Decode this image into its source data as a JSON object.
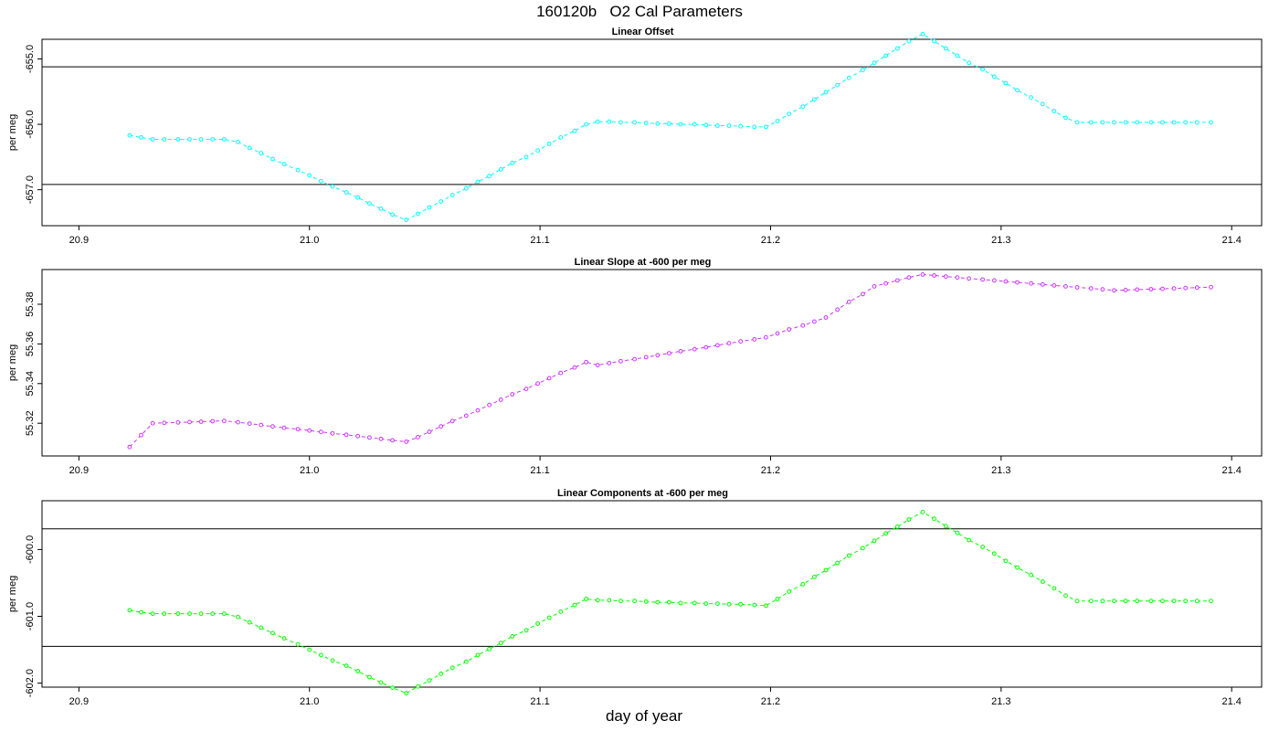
{
  "title": "160120b   O2 Cal Parameters",
  "xlabel": "day of year",
  "chart_data": [
    {
      "type": "line",
      "title": "Linear Offset",
      "xlabel": "day of year",
      "ylabel": "per meg",
      "color": "#00ffff",
      "xlim": [
        20.884,
        21.413
      ],
      "ylim": [
        -657.55,
        -654.7
      ],
      "x_ticks": [
        20.9,
        21.0,
        21.1,
        21.2,
        21.3,
        21.4
      ],
      "x_tick_labels": [
        "20.9",
        "21.0",
        "21.1",
        "21.2",
        "21.3",
        "21.4"
      ],
      "y_ticks": [
        -655.0,
        -656.0,
        -657.0
      ],
      "y_tick_labels": [
        "-655.0",
        "-656.0",
        "-657.0"
      ],
      "hlines": [
        -655.12,
        -656.92
      ],
      "series": [
        {
          "name": "Linear Offset",
          "x": [
            20.922,
            20.927,
            20.932,
            20.937,
            20.943,
            20.948,
            20.953,
            20.958,
            20.963,
            20.969,
            20.974,
            20.979,
            20.984,
            20.989,
            20.995,
            21.0,
            21.005,
            21.01,
            21.016,
            21.021,
            21.026,
            21.031,
            21.036,
            21.042,
            21.047,
            21.052,
            21.057,
            21.062,
            21.068,
            21.073,
            21.078,
            21.083,
            21.088,
            21.094,
            21.099,
            21.104,
            21.109,
            21.115,
            21.12,
            21.125,
            21.13,
            21.135,
            21.141,
            21.146,
            21.151,
            21.156,
            21.161,
            21.167,
            21.172,
            21.177,
            21.182,
            21.187,
            21.193,
            21.198,
            21.203,
            21.208,
            21.214,
            21.219,
            21.224,
            21.229,
            21.234,
            21.24,
            21.245,
            21.25,
            21.255,
            21.26,
            21.266,
            21.271,
            21.276,
            21.281,
            21.286,
            21.292,
            21.297,
            21.302,
            21.307,
            21.313,
            21.318,
            21.323,
            21.328,
            21.333,
            21.339,
            21.344,
            21.349,
            21.354,
            21.359,
            21.365,
            21.37,
            21.375,
            21.38,
            21.385,
            21.391
          ],
          "y": [
            -656.17,
            -656.2,
            -656.23,
            -656.23,
            -656.23,
            -656.23,
            -656.23,
            -656.23,
            -656.23,
            -656.27,
            -656.36,
            -656.44,
            -656.53,
            -656.61,
            -656.7,
            -656.78,
            -656.87,
            -656.95,
            -657.04,
            -657.12,
            -657.21,
            -657.29,
            -657.38,
            -657.46,
            -657.37,
            -657.27,
            -657.18,
            -657.08,
            -656.98,
            -656.88,
            -656.79,
            -656.69,
            -656.59,
            -656.5,
            -656.4,
            -656.3,
            -656.2,
            -656.1,
            -656.0,
            -655.96,
            -655.96,
            -655.97,
            -655.97,
            -655.98,
            -655.99,
            -655.99,
            -656.0,
            -656.0,
            -656.01,
            -656.02,
            -656.02,
            -656.03,
            -656.04,
            -656.04,
            -655.95,
            -655.84,
            -655.73,
            -655.62,
            -655.51,
            -655.4,
            -655.29,
            -655.17,
            -655.06,
            -654.95,
            -654.84,
            -654.73,
            -654.62,
            -654.73,
            -654.84,
            -654.95,
            -655.06,
            -655.16,
            -655.27,
            -655.37,
            -655.48,
            -655.59,
            -655.69,
            -655.8,
            -655.9,
            -655.97,
            -655.97,
            -655.97,
            -655.97,
            -655.97,
            -655.97,
            -655.97,
            -655.97,
            -655.97,
            -655.97,
            -655.97,
            -655.97
          ]
        }
      ]
    },
    {
      "type": "line",
      "title": "Linear Slope at -600 per meg",
      "xlabel": "day of year",
      "ylabel": "per meg",
      "color": "#cc33ff",
      "xlim": [
        20.884,
        21.413
      ],
      "ylim": [
        55.3035,
        55.3975
      ],
      "x_ticks": [
        20.9,
        21.0,
        21.1,
        21.2,
        21.3,
        21.4
      ],
      "x_tick_labels": [
        "20.9",
        "21.0",
        "21.1",
        "21.2",
        "21.3",
        "21.4"
      ],
      "y_ticks": [
        55.32,
        55.34,
        55.36,
        55.38
      ],
      "y_tick_labels": [
        "55.32",
        "55.34",
        "55.36",
        "55.38"
      ],
      "hlines": [],
      "series": [
        {
          "name": "Linear Slope at -600 per meg",
          "x": [
            20.922,
            20.927,
            20.932,
            20.937,
            20.943,
            20.948,
            20.953,
            20.958,
            20.963,
            20.969,
            20.974,
            20.979,
            20.984,
            20.989,
            20.995,
            21.0,
            21.005,
            21.01,
            21.016,
            21.021,
            21.026,
            21.031,
            21.036,
            21.042,
            21.047,
            21.052,
            21.057,
            21.062,
            21.068,
            21.073,
            21.078,
            21.083,
            21.088,
            21.094,
            21.099,
            21.104,
            21.109,
            21.115,
            21.12,
            21.125,
            21.13,
            21.135,
            21.141,
            21.146,
            21.151,
            21.156,
            21.161,
            21.167,
            21.172,
            21.177,
            21.182,
            21.187,
            21.193,
            21.198,
            21.203,
            21.208,
            21.214,
            21.219,
            21.224,
            21.229,
            21.234,
            21.24,
            21.245,
            21.25,
            21.255,
            21.26,
            21.266,
            21.271,
            21.276,
            21.281,
            21.286,
            21.292,
            21.297,
            21.302,
            21.307,
            21.313,
            21.318,
            21.323,
            21.328,
            21.333,
            21.339,
            21.344,
            21.349,
            21.354,
            21.359,
            21.365,
            21.37,
            21.375,
            21.38,
            21.385,
            21.391
          ],
          "y": [
            55.308,
            55.314,
            55.32,
            55.3202,
            55.3204,
            55.3206,
            55.3208,
            55.321,
            55.3212,
            55.3205,
            55.3198,
            55.3191,
            55.3184,
            55.3177,
            55.317,
            55.3163,
            55.3156,
            55.3149,
            55.3142,
            55.3135,
            55.3128,
            55.3121,
            55.3114,
            55.3107,
            55.313,
            55.3157,
            55.3184,
            55.3211,
            55.3238,
            55.3265,
            55.3292,
            55.3319,
            55.3346,
            55.3373,
            55.34,
            55.3427,
            55.3454,
            55.3481,
            55.3508,
            55.3493,
            55.3503,
            55.3513,
            55.3523,
            55.3533,
            55.3543,
            55.3553,
            55.3563,
            55.3573,
            55.3583,
            55.3593,
            55.3603,
            55.3613,
            55.3623,
            55.3633,
            55.3653,
            55.3673,
            55.3693,
            55.3713,
            55.3733,
            55.3773,
            55.3812,
            55.3851,
            55.389,
            55.3905,
            55.392,
            55.3935,
            55.395,
            55.3945,
            55.394,
            55.3935,
            55.393,
            55.3925,
            55.392,
            55.3915,
            55.391,
            55.3905,
            55.39,
            55.3895,
            55.389,
            55.3885,
            55.388,
            55.3875,
            55.387,
            55.3872,
            55.3874,
            55.3876,
            55.3878,
            55.388,
            55.3882,
            55.3884,
            55.3886
          ]
        }
      ]
    },
    {
      "type": "line",
      "title": "Linear Components at -600 per meg",
      "xlabel": "day of year",
      "ylabel": "per meg",
      "color": "#00ff00",
      "xlim": [
        20.884,
        21.413
      ],
      "ylim": [
        -602.06,
        -599.27
      ],
      "x_ticks": [
        20.9,
        21.0,
        21.1,
        21.2,
        21.3,
        21.4
      ],
      "x_tick_labels": [
        "20.9",
        "21.0",
        "21.1",
        "21.2",
        "21.3",
        "21.4"
      ],
      "y_ticks": [
        -600.0,
        -601.0,
        -602.0
      ],
      "y_tick_labels": [
        "-600.0",
        "-601.0",
        "-602.0"
      ],
      "hlines": [
        -599.69,
        -601.45
      ],
      "series": [
        {
          "name": "Linear Components at -600 per meg",
          "x": [
            20.922,
            20.927,
            20.932,
            20.937,
            20.943,
            20.948,
            20.953,
            20.958,
            20.963,
            20.969,
            20.974,
            20.979,
            20.984,
            20.989,
            20.995,
            21.0,
            21.005,
            21.01,
            21.016,
            21.021,
            21.026,
            21.031,
            21.036,
            21.042,
            21.047,
            21.052,
            21.057,
            21.062,
            21.068,
            21.073,
            21.078,
            21.083,
            21.088,
            21.094,
            21.099,
            21.104,
            21.109,
            21.115,
            21.12,
            21.125,
            21.13,
            21.135,
            21.141,
            21.146,
            21.151,
            21.156,
            21.161,
            21.167,
            21.172,
            21.177,
            21.182,
            21.187,
            21.193,
            21.198,
            21.203,
            21.208,
            21.214,
            21.219,
            21.224,
            21.229,
            21.234,
            21.24,
            21.245,
            21.25,
            21.255,
            21.26,
            21.266,
            21.271,
            21.276,
            21.281,
            21.286,
            21.292,
            21.297,
            21.302,
            21.307,
            21.313,
            21.318,
            21.323,
            21.328,
            21.333,
            21.339,
            21.344,
            21.349,
            21.354,
            21.359,
            21.365,
            21.37,
            21.375,
            21.38,
            21.385,
            21.391
          ],
          "y": [
            -600.91,
            -600.94,
            -600.96,
            -600.96,
            -600.96,
            -600.96,
            -600.96,
            -600.96,
            -600.96,
            -601.01,
            -601.09,
            -601.17,
            -601.25,
            -601.33,
            -601.42,
            -601.5,
            -601.58,
            -601.66,
            -601.74,
            -601.82,
            -601.91,
            -601.99,
            -602.07,
            -602.15,
            -602.05,
            -601.96,
            -601.86,
            -601.77,
            -601.68,
            -601.58,
            -601.49,
            -601.4,
            -601.3,
            -601.21,
            -601.11,
            -601.02,
            -600.93,
            -600.83,
            -600.74,
            -600.76,
            -600.76,
            -600.77,
            -600.77,
            -600.78,
            -600.79,
            -600.79,
            -600.8,
            -600.8,
            -600.81,
            -600.81,
            -600.82,
            -600.82,
            -600.83,
            -600.84,
            -600.74,
            -600.63,
            -600.52,
            -600.41,
            -600.31,
            -600.2,
            -600.09,
            -599.98,
            -599.87,
            -599.76,
            -599.66,
            -599.55,
            -599.44,
            -599.54,
            -599.65,
            -599.75,
            -599.86,
            -599.96,
            -600.06,
            -600.17,
            -600.27,
            -600.38,
            -600.48,
            -600.58,
            -600.69,
            -600.77,
            -600.77,
            -600.77,
            -600.77,
            -600.77,
            -600.77,
            -600.77,
            -600.77,
            -600.77,
            -600.77,
            -600.77,
            -600.77
          ]
        }
      ]
    }
  ]
}
